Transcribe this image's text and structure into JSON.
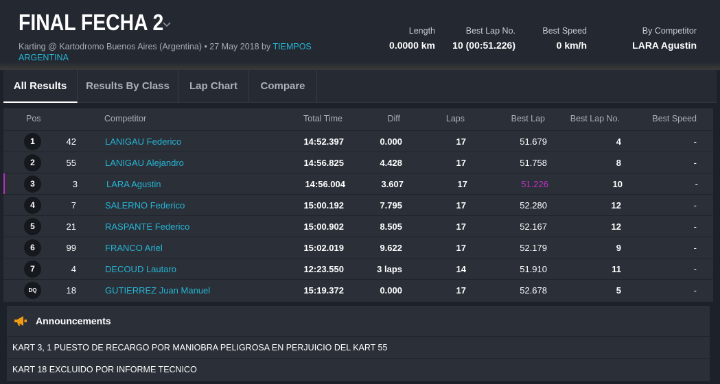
{
  "event": {
    "title": "FINAL FECHA 2",
    "subtitle": "Karting @ Kartodromo Buenos Aires (Argentina) • 27 May 2018 by",
    "organizer": "TIEMPOS ARGENTINA"
  },
  "stats": {
    "length_label": "Length",
    "length_value": "0.0000 km",
    "best_lap_no_label": "Best Lap No.",
    "best_lap_no_value": "10 (00:51.226)",
    "best_speed_label": "Best Speed",
    "best_speed_value": "0 km/h",
    "by_competitor_label": "By Competitor",
    "by_competitor_value": "LARA Agustin"
  },
  "tabs": [
    "All Results",
    "Results By Class",
    "Lap Chart",
    "Compare"
  ],
  "active_tab": "All Results",
  "table": {
    "headers": {
      "pos": "Pos",
      "competitor": "Competitor",
      "total_time": "Total Time",
      "diff": "Diff",
      "laps": "Laps",
      "best_lap": "Best Lap",
      "best_lap_no": "Best Lap No.",
      "best_speed": "Best Speed"
    },
    "rows": [
      {
        "pos": "1",
        "num": "42",
        "name": "LANIGAU Federico",
        "total": "14:52.397",
        "diff": "0.000",
        "laps": "17",
        "best": "51.679",
        "best_no": "4",
        "speed": "-"
      },
      {
        "pos": "2",
        "num": "55",
        "name": "LANIGAU Alejandro",
        "total": "14:56.825",
        "diff": "4.428",
        "laps": "17",
        "best": "51.758",
        "best_no": "8",
        "speed": "-"
      },
      {
        "pos": "3",
        "num": "3",
        "name": "LARA Agustin",
        "total": "14:56.004",
        "diff": "3.607",
        "laps": "17",
        "best": "51.226",
        "best_no": "10",
        "speed": "-"
      },
      {
        "pos": "4",
        "num": "7",
        "name": "SALERNO Federico",
        "total": "15:00.192",
        "diff": "7.795",
        "laps": "17",
        "best": "52.280",
        "best_no": "12",
        "speed": "-"
      },
      {
        "pos": "5",
        "num": "21",
        "name": "RASPANTE Federico",
        "total": "15:00.902",
        "diff": "8.505",
        "laps": "17",
        "best": "52.167",
        "best_no": "12",
        "speed": "-"
      },
      {
        "pos": "6",
        "num": "99",
        "name": "FRANCO Ariel",
        "total": "15:02.019",
        "diff": "9.622",
        "laps": "17",
        "best": "52.179",
        "best_no": "9",
        "speed": "-"
      },
      {
        "pos": "7",
        "num": "4",
        "name": "DECOUD Lautaro",
        "total": "12:23.550",
        "diff": "3 laps",
        "laps": "14",
        "best": "51.910",
        "best_no": "11",
        "speed": "-"
      },
      {
        "pos": "DQ",
        "num": "18",
        "name": "GUTIERREZ Juan Manuel",
        "total": "15:19.372",
        "diff": "0.000",
        "laps": "17",
        "best": "52.678",
        "best_no": "5",
        "speed": "-"
      }
    ]
  },
  "announcements": {
    "title": "Announcements",
    "items": [
      "KART 3, 1 PUESTO DE RECARGO POR MANIOBRA PELIGROSA EN PERJUICIO DEL KART 55",
      "KART 18 EXCLUIDO POR INFORME TECNICO"
    ]
  },
  "colors": {
    "link": "#27b5d3",
    "best_lap_highlight": "#c033c6",
    "announcement_icon": "#f39c12"
  },
  "icons": {
    "title_dropdown": "chevron-down-icon",
    "announcement": "megaphone-icon"
  }
}
